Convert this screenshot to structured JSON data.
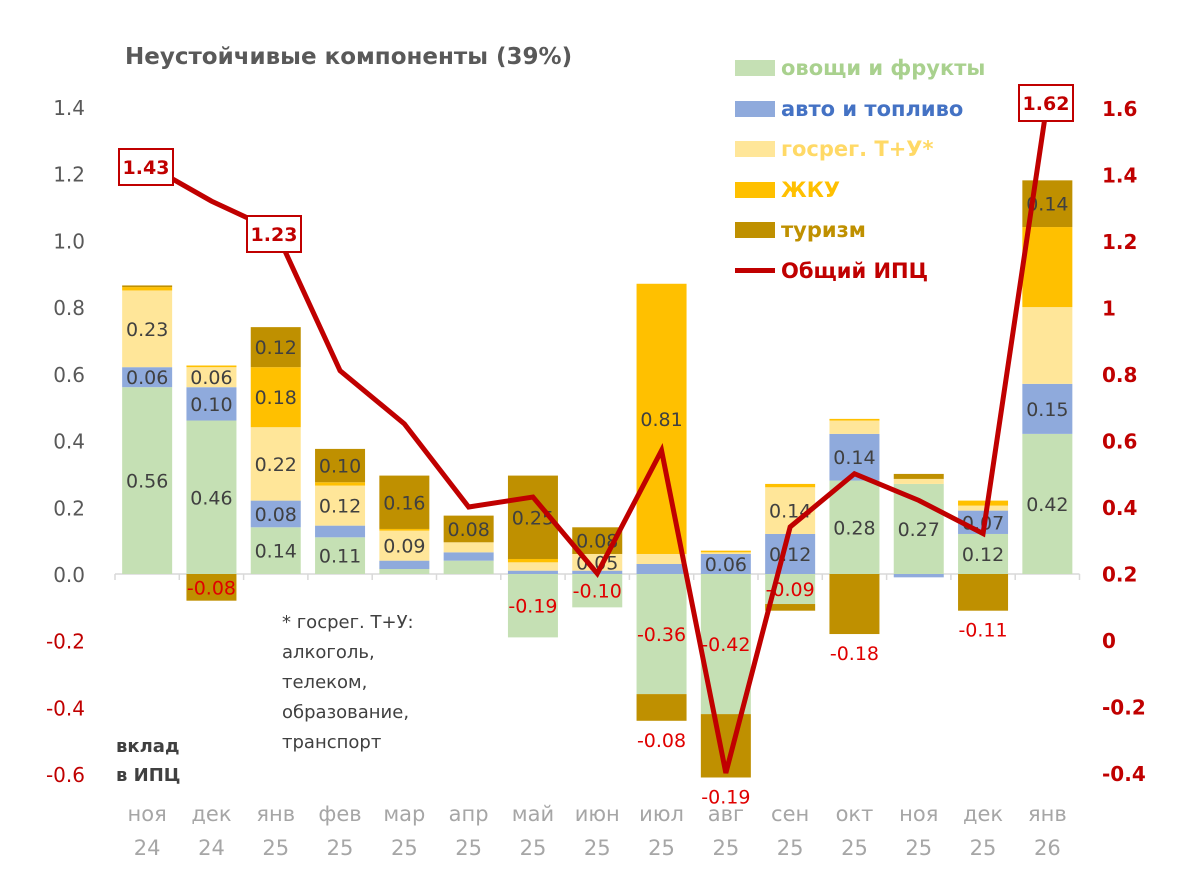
{
  "chart_data": {
    "type": "bar",
    "stacked": true,
    "title": "Неустойчивые компоненты (39%)",
    "ylabel": "вклад в ИПЦ",
    "categories": [
      [
        "ноя",
        "24"
      ],
      [
        "дек",
        "24"
      ],
      [
        "янв",
        "25"
      ],
      [
        "фев",
        "25"
      ],
      [
        "мар",
        "25"
      ],
      [
        "апр",
        "25"
      ],
      [
        "май",
        "25"
      ],
      [
        "июн",
        "25"
      ],
      [
        "июл",
        "25"
      ],
      [
        "авг",
        "25"
      ],
      [
        "сен",
        "25"
      ],
      [
        "окт",
        "25"
      ],
      [
        "ноя",
        "25"
      ],
      [
        "дек",
        "25"
      ],
      [
        "янв",
        "26"
      ]
    ],
    "ylim": [
      -0.6,
      1.4
    ],
    "yticks": [
      "1.4",
      "1.2",
      "1.0",
      "0.8",
      "0.6",
      "0.4",
      "0.2",
      "0.0",
      "-0.2",
      "-0.4",
      "-0.6"
    ],
    "y2lim": [
      -0.4,
      1.6
    ],
    "y2ticks": [
      "1.6",
      "1.4",
      "1.2",
      "1",
      "0.8",
      "0.6",
      "0.4",
      "0.2",
      "0",
      "-0.2",
      "-0.4"
    ],
    "series": [
      {
        "name": "овощи и фрукты",
        "color": "#c5e0b4",
        "labelColor": "#a9d18e",
        "values": [
          0.56,
          0.46,
          0.14,
          0.11,
          0.015,
          0.04,
          -0.19,
          -0.1,
          -0.36,
          -0.42,
          -0.09,
          0.28,
          0.27,
          0.12,
          0.42
        ],
        "labels": [
          "0.56",
          "0.46",
          "0.14",
          "0.11",
          "",
          "",
          "-0.19",
          "-0.10",
          "-0.36",
          "-0.42",
          "-0.09",
          "0.28",
          "0.27",
          "0.12",
          "0.42"
        ]
      },
      {
        "name": "авто и топливо",
        "color": "#8faadc",
        "labelColor": "#4472c4",
        "values": [
          0.06,
          0.1,
          0.08,
          0.035,
          0.025,
          0.025,
          0.01,
          0.01,
          0.03,
          0.06,
          0.12,
          0.14,
          -0.01,
          0.07,
          0.15
        ],
        "labels": [
          "0.06",
          "0.10",
          "0.08",
          "",
          "",
          "",
          "",
          "",
          "",
          "0.06",
          "0.12",
          "0.14",
          "",
          "0.07",
          "0.15"
        ]
      },
      {
        "name": "госрег. Т+У*",
        "color": "#ffe699",
        "labelColor": "#ffd966",
        "values": [
          0.23,
          0.06,
          0.22,
          0.12,
          0.09,
          0.03,
          0.025,
          0.05,
          0.03,
          0.005,
          0.14,
          0.04,
          0.015,
          0.015,
          0.23
        ],
        "labels": [
          "0.23",
          "0.06",
          "0.22",
          "0.12",
          "0.09",
          "",
          "",
          "0.05",
          "",
          "",
          "0.14",
          "",
          "",
          "",
          ""
        ]
      },
      {
        "name": "ЖКУ",
        "color": "#ffc000",
        "labelColor": "#ffc000",
        "values": [
          0.01,
          0.005,
          0.18,
          0.01,
          0.005,
          0.0,
          0.01,
          0.0,
          0.81,
          0.005,
          0.01,
          0.005,
          0.0,
          0.015,
          0.24
        ],
        "labels": [
          "",
          "",
          "0.18",
          "",
          "",
          "",
          "",
          "",
          "0.81",
          "",
          "",
          "",
          "",
          "",
          ""
        ]
      },
      {
        "name": "туризм",
        "color": "#bf9000",
        "labelColor": "#bf9000",
        "values": [
          0.005,
          -0.08,
          0.12,
          0.1,
          0.16,
          0.08,
          0.25,
          0.08,
          -0.08,
          -0.19,
          -0.02,
          -0.18,
          0.015,
          -0.11,
          0.14
        ],
        "labels": [
          "",
          "-0.08",
          "0.12",
          "0.10",
          "0.16",
          "0.08",
          "0.25",
          "0.08",
          "-0.08",
          "-0.19",
          "",
          "-0.18",
          "",
          "-0.11",
          "0.14"
        ]
      },
      {
        "name": "Общий ИПЦ",
        "type": "line",
        "axis": "right",
        "color": "#c00000",
        "values": [
          1.43,
          1.32,
          1.23,
          0.81,
          0.65,
          0.4,
          0.43,
          0.2,
          0.57,
          -0.4,
          0.34,
          0.5,
          0.42,
          0.32,
          1.62
        ],
        "labels": [
          "1.43",
          "",
          "1.23",
          "",
          "",
          "",
          "",
          "",
          "",
          "",
          "",
          "",
          "",
          "",
          "1.62"
        ]
      }
    ],
    "annotations": {
      "footnote": [
        "* госрег. Т+У:",
        "алкоголь,",
        "телеком,",
        "образование,",
        "транспорт"
      ],
      "axis_note": [
        "вклад",
        "в ИПЦ"
      ]
    }
  }
}
